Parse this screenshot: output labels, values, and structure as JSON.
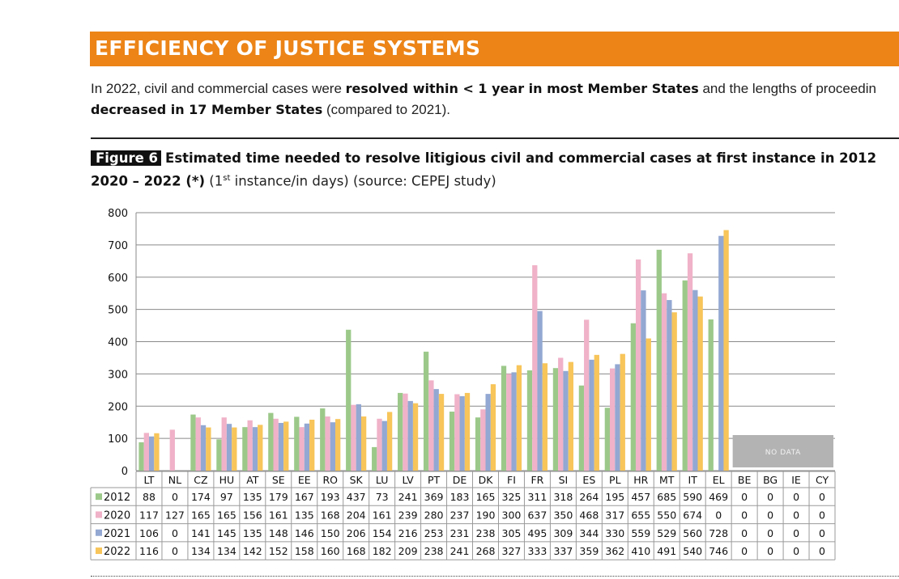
{
  "section": {
    "title": "EFFICIENCY OF JUSTICE SYSTEMS"
  },
  "intro": {
    "part1": "In 2022, civil and commercial cases were ",
    "bold1": "resolved within < 1 year in most Member States",
    "part2": " and the lengths of proceedin",
    "bold2": "decreased in 17 Member States",
    "part3": " (compared to 2021)."
  },
  "figure": {
    "label": "Figure 6",
    "title_line1": "Estimated time needed to resolve litigious civil and commercial cases at first instance in 2012",
    "title_line2_bold": "2020 – 2022 (*)",
    "sub_pre": " (1",
    "sub_sup": "st",
    "sub_post": " instance/in days) (source: CEPEJ study)"
  },
  "chart_data": {
    "type": "bar",
    "title": "Estimated time needed to resolve litigious civil and commercial cases at first instance",
    "ylabel": "days",
    "xlabel": "",
    "ylim": [
      0,
      800
    ],
    "yticks": [
      0,
      100,
      200,
      300,
      400,
      500,
      600,
      700,
      800
    ],
    "grid": true,
    "legend": "table-left",
    "no_data_label": "NO DATA",
    "no_data_categories": [
      "BE",
      "BG",
      "IE",
      "CY"
    ],
    "categories": [
      "LT",
      "NL",
      "CZ",
      "HU",
      "AT",
      "SE",
      "EE",
      "RO",
      "SK",
      "LU",
      "LV",
      "PT",
      "DE",
      "DK",
      "FI",
      "FR",
      "SI",
      "ES",
      "PL",
      "HR",
      "MT",
      "IT",
      "EL",
      "BE",
      "BG",
      "IE",
      "CY"
    ],
    "series": [
      {
        "name": "2012",
        "color": "#9cc98a",
        "values": [
          88,
          0,
          174,
          97,
          135,
          179,
          167,
          193,
          437,
          73,
          241,
          369,
          183,
          165,
          325,
          311,
          318,
          264,
          195,
          457,
          685,
          590,
          469,
          0,
          0,
          0,
          0
        ]
      },
      {
        "name": "2020",
        "color": "#f0b2c8",
        "values": [
          117,
          127,
          165,
          165,
          156,
          161,
          135,
          168,
          204,
          161,
          239,
          280,
          237,
          190,
          300,
          637,
          350,
          468,
          317,
          655,
          550,
          674,
          0,
          0,
          0,
          0,
          0
        ]
      },
      {
        "name": "2021",
        "color": "#93a8d2",
        "values": [
          106,
          0,
          141,
          145,
          135,
          148,
          146,
          150,
          206,
          154,
          216,
          253,
          231,
          238,
          305,
          495,
          309,
          344,
          330,
          559,
          529,
          560,
          728,
          0,
          0,
          0,
          0
        ]
      },
      {
        "name": "2022",
        "color": "#f7c55a",
        "values": [
          116,
          0,
          134,
          134,
          142,
          152,
          158,
          160,
          168,
          182,
          209,
          238,
          241,
          268,
          327,
          333,
          337,
          359,
          362,
          410,
          491,
          540,
          746,
          0,
          0,
          0,
          0
        ]
      }
    ]
  }
}
